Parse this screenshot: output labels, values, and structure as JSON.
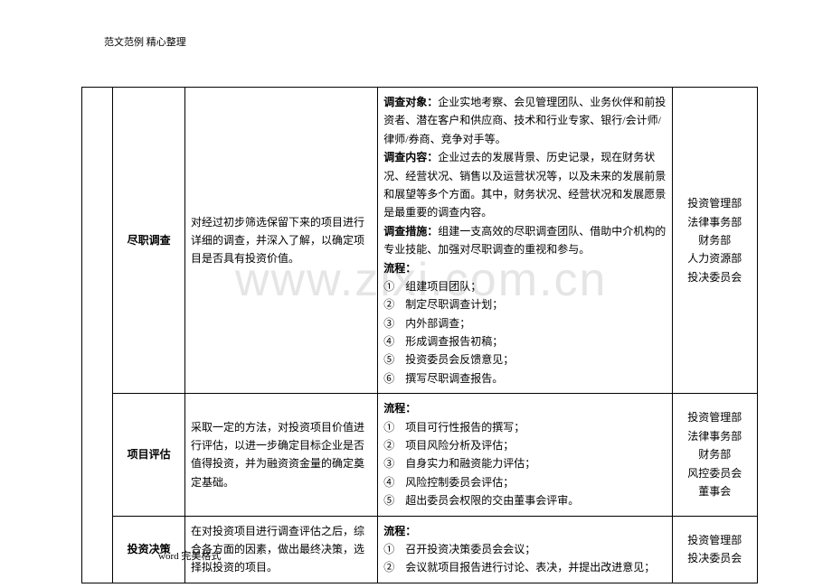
{
  "header": "范文范例   精心整理",
  "footer": "word 完美格式",
  "watermark": "www.zixi.com.cn",
  "rows": [
    {
      "name": "尽职调查",
      "desc": "对经过初步筛选保留下来的项目进行详细的调查，并深入了解，以确定项目是否具有投资价值。",
      "detail_html": "<span class='bold'>调查对象：</span>企业实地考察、会见管理团队、业务伙伴和前投资者、潜在客户和供应商、技术和行业专家、银行/会计师/律师/券商、竞争对手等。<br><span class='bold'>调查内容：</span>企业过去的发展背景、历史记录，现在财务状况、经营状况、销售以及运营状况等，以及未来的发展前景和展望等多个方面。其中，财务状况、经营状况和发展愿景是最重要的调查内容。<br><span class='bold'>调查措施：</span>组建一支高效的尽职调查团队、借助中介机构的专业技能、加强对尽职调查的重视和参与。<br><span class='bold'>流程：</span><br>①　组建项目团队；<br>②　制定尽职调查计划；<br>③　内外部调查；<br>④　形成调查报告初稿；<br>⑤　投资委员会反馈意见；<br>⑥　撰写尽职调查报告。",
      "dept": "投资管理部<br>法律事务部<br>财务部<br>人力资源部<br>投决委员会"
    },
    {
      "name": "项目评估",
      "desc": "采取一定的方法，对投资项目价值进行评估，以进一步确定目标企业是否值得投资，并为融资资金量的确定奠定基础。",
      "detail_html": "<span class='bold'>流程：</span><br>①　项目可行性报告的撰写；<br>②　项目风险分析及评估；<br>③　自身实力和融资能力评估；<br>④　风险控制委员会评估；<br>⑤　超出委员会权限的交由董事会评审。",
      "dept": "投资管理部<br>法律事务部<br>财务部<br>风控委员会<br>董事会"
    },
    {
      "name": "投资决策",
      "desc": "在对投资项目进行调查评估之后，综合各方面的因素，做出最终决策，选择拟投资的项目。",
      "detail_html": "<span class='bold'>流程：</span><br>①　召开投资决策委员会会议；<br>②　会议就项目报告进行讨论、表决，并提出改进意见；",
      "dept": "投资管理部<br>投决委员会"
    }
  ]
}
